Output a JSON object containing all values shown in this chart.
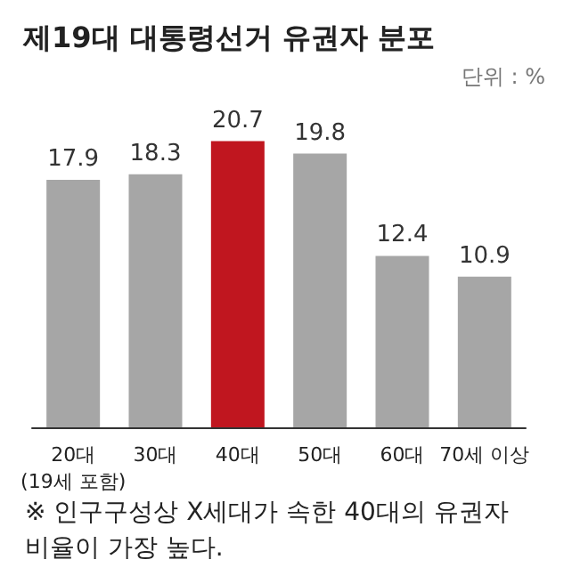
{
  "chart_data": {
    "type": "bar",
    "title": "제19대 대통령선거 유권자 분포",
    "subtitle": "단위 : %",
    "categories": [
      "20대\n(19세 포함)",
      "30대",
      "40대",
      "50대",
      "60대",
      "70세 이상"
    ],
    "values": [
      17.9,
      18.3,
      20.7,
      19.8,
      12.4,
      10.9
    ],
    "colors": [
      "#a6a6a6",
      "#a6a6a6",
      "#c0161f",
      "#a6a6a6",
      "#a6a6a6",
      "#a6a6a6"
    ],
    "data_labels": true,
    "annotations": [
      "※ 인구구성상 X세대가 속한 40대의 유권자 비율이 가장 높다."
    ]
  }
}
